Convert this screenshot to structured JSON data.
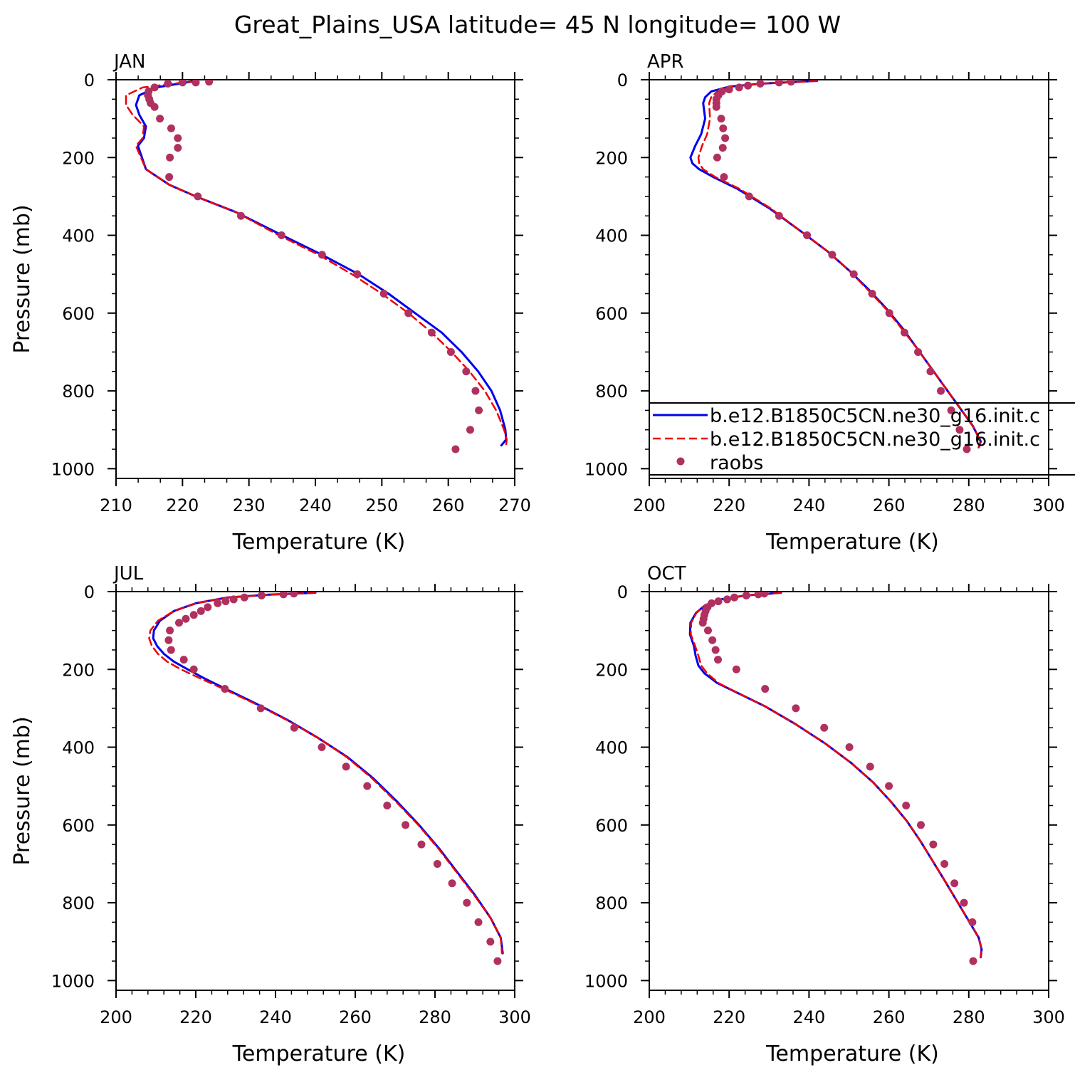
{
  "title": "Great_Plains_USA  latitude= 45 N longitude= 100 W",
  "colors": {
    "model1": "#0000ee",
    "model2": "#ee0000",
    "obs": "#b03060"
  },
  "legend": {
    "placement": "inside panel APR, lower part, clipped at right edge",
    "entries": [
      {
        "label": "b.e12.B1850C5CN.ne30_g16.init.c",
        "style": "solid",
        "color": "#0000ee"
      },
      {
        "label": "b.e12.B1850C5CN.ne30_g16.init.c",
        "style": "dashed",
        "color": "#ee0000"
      },
      {
        "label": "raobs",
        "style": "marker",
        "color": "#b03060"
      }
    ]
  },
  "chart_data": [
    {
      "type": "line",
      "title": "JAN",
      "xlabel": "Temperature (K)",
      "ylabel": "Pressure (mb)",
      "xlim": [
        210,
        270
      ],
      "ylim": [
        0,
        1025
      ],
      "y_inverted": true,
      "xticks": [
        210,
        220,
        230,
        240,
        250,
        260,
        270
      ],
      "xticks_minor": 2,
      "yticks": [
        0,
        200,
        400,
        600,
        800,
        1000
      ],
      "series": [
        {
          "style": "solid",
          "color": "#0000ee",
          "x": [
            222,
            216,
            213.5,
            213,
            213.5,
            214.5,
            214.2,
            213.3,
            214.5,
            218,
            222,
            228,
            235,
            241,
            246.5,
            251,
            255,
            259,
            262,
            264.5,
            266.5,
            267.8,
            268.6,
            268.7,
            268
          ],
          "y": [
            3,
            20,
            40,
            65,
            90,
            120,
            150,
            170,
            230,
            270,
            300,
            340,
            400,
            450,
            500,
            550,
            600,
            650,
            700,
            750,
            800,
            850,
            900,
            925,
            940
          ]
        },
        {
          "style": "dashed",
          "color": "#ee0000",
          "x": [
            222,
            214,
            211.5,
            211.5,
            212.5,
            214.2,
            214,
            213,
            214.5,
            218,
            222,
            228,
            234.5,
            240.5,
            245.5,
            250,
            254,
            257.5,
            260.5,
            263.2,
            265.5,
            267.2,
            268.4,
            268.8,
            268.7
          ],
          "y": [
            3,
            20,
            40,
            65,
            90,
            120,
            150,
            170,
            230,
            270,
            300,
            340,
            400,
            450,
            500,
            550,
            600,
            650,
            700,
            750,
            800,
            850,
            900,
            925,
            940
          ]
        }
      ],
      "observations": {
        "x": [
          224,
          222,
          220,
          217.8,
          215.8,
          214.9,
          214.8,
          215,
          215.2,
          215.8,
          216.6,
          218.3,
          219.3,
          219.3,
          218.1,
          218,
          222.3,
          228.8,
          234.9,
          241,
          246.3,
          250.3,
          254,
          257.5,
          260.4,
          262.7,
          264.1,
          264.6,
          263.3,
          261.1
        ],
        "y": [
          5,
          7,
          7,
          10,
          20,
          30,
          40,
          50,
          60,
          70,
          100,
          125,
          150,
          175,
          200,
          250,
          300,
          350,
          400,
          450,
          500,
          550,
          600,
          650,
          700,
          750,
          800,
          850,
          900,
          950
        ]
      }
    },
    {
      "type": "line",
      "title": "APR",
      "xlabel": "Temperature (K)",
      "ylabel": "",
      "xlim": [
        200,
        300
      ],
      "ylim": [
        0,
        1025
      ],
      "y_inverted": true,
      "xticks": [
        200,
        220,
        240,
        260,
        280,
        300
      ],
      "xticks_minor": 4,
      "yticks": [
        0,
        200,
        400,
        600,
        800,
        1000
      ],
      "series": [
        {
          "style": "solid",
          "color": "#0000ee",
          "x": [
            242,
            228,
            220,
            215.5,
            214,
            213.5,
            214,
            213,
            211.5,
            210.3,
            210.8,
            212.5,
            216,
            222,
            230,
            238,
            244.5,
            250,
            255,
            259.5,
            263.5,
            267,
            270.5,
            274,
            277.5,
            281,
            283,
            282.5
          ],
          "y": [
            3,
            10,
            18,
            30,
            45,
            60,
            100,
            140,
            170,
            200,
            215,
            230,
            250,
            280,
            330,
            390,
            440,
            490,
            540,
            590,
            640,
            690,
            740,
            790,
            840,
            890,
            930,
            945
          ]
        },
        {
          "style": "dashed",
          "color": "#ee0000",
          "x": [
            242,
            228,
            221,
            217,
            215.5,
            215,
            215.2,
            214.5,
            213.2,
            212.3,
            212.5,
            213.5,
            216.5,
            222.5,
            230.3,
            238,
            244.5,
            250,
            254.7,
            259.3,
            263.2,
            267,
            270.5,
            274,
            277.5,
            281,
            283,
            282.5
          ],
          "y": [
            3,
            10,
            18,
            30,
            45,
            60,
            100,
            140,
            170,
            200,
            215,
            230,
            250,
            280,
            330,
            390,
            440,
            490,
            540,
            590,
            640,
            690,
            740,
            790,
            840,
            890,
            930,
            945
          ]
        }
      ],
      "observations": {
        "x": [
          235.5,
          232.5,
          227.8,
          224.7,
          222.5,
          220,
          218.2,
          217.3,
          216.8,
          216.8,
          216.8,
          218,
          218.5,
          219,
          218.4,
          217,
          218.7,
          225,
          232.5,
          239.5,
          245.8,
          251.2,
          255.8,
          260.1,
          263.9,
          267.3,
          270.4,
          273,
          275.6,
          277.7,
          279.5
        ],
        "y": [
          5,
          7,
          10,
          15,
          20,
          25,
          30,
          40,
          50,
          60,
          70,
          100,
          125,
          150,
          175,
          200,
          250,
          300,
          350,
          400,
          450,
          500,
          550,
          600,
          650,
          700,
          750,
          800,
          850,
          900,
          950
        ]
      }
    },
    {
      "type": "line",
      "title": "JUL",
      "xlabel": "Temperature (K)",
      "ylabel": "Pressure (mb)",
      "xlim": [
        200,
        300
      ],
      "ylim": [
        0,
        1025
      ],
      "y_inverted": true,
      "xticks": [
        200,
        220,
        240,
        260,
        280,
        300
      ],
      "xticks_minor": 4,
      "yticks": [
        0,
        200,
        400,
        600,
        800,
        1000
      ],
      "series": [
        {
          "style": "solid",
          "color": "#0000ee",
          "x": [
            250,
            238,
            228,
            220,
            214.5,
            211,
            209.5,
            209.3,
            210.3,
            212,
            214.5,
            218,
            222.5,
            228.5,
            235.5,
            243,
            250.5,
            258,
            264.5,
            270.5,
            276,
            281,
            285.5,
            290,
            294,
            296.5,
            297
          ],
          "y": [
            3,
            8,
            15,
            30,
            50,
            75,
            100,
            120,
            140,
            160,
            180,
            200,
            225,
            255,
            290,
            330,
            375,
            425,
            480,
            540,
            600,
            660,
            720,
            780,
            840,
            890,
            930
          ]
        },
        {
          "style": "dashed",
          "color": "#ee0000",
          "x": [
            250,
            238,
            228,
            220,
            214.5,
            210.5,
            208.6,
            208.3,
            209,
            210.5,
            212.8,
            216.3,
            221.5,
            228,
            235.2,
            242.8,
            250.5,
            257.8,
            264.2,
            270.2,
            275.8,
            280.8,
            285.3,
            289.8,
            294,
            296.5,
            296.8
          ],
          "y": [
            3,
            8,
            15,
            30,
            50,
            75,
            100,
            120,
            140,
            160,
            180,
            200,
            225,
            255,
            290,
            330,
            375,
            425,
            480,
            540,
            600,
            660,
            720,
            780,
            840,
            890,
            930
          ]
        }
      ],
      "observations": {
        "x": [
          244.6,
          242,
          236.5,
          232.2,
          229.5,
          227.5,
          225.5,
          223,
          221.3,
          219.5,
          217.5,
          215.8,
          213.5,
          213.2,
          213.8,
          217,
          219.5,
          227.3,
          236.3,
          244.7,
          251.6,
          257.7,
          263,
          268,
          272.6,
          276.6,
          280.6,
          284.3,
          288,
          290.9,
          293.9,
          295.7
        ],
        "y": [
          5,
          7,
          10,
          15,
          20,
          25,
          30,
          40,
          50,
          60,
          70,
          80,
          100,
          125,
          150,
          175,
          200,
          250,
          300,
          350,
          400,
          450,
          500,
          550,
          600,
          650,
          700,
          750,
          800,
          850,
          900,
          950
        ]
      }
    },
    {
      "type": "line",
      "title": "OCT",
      "xlabel": "Temperature (K)",
      "ylabel": "",
      "xlim": [
        200,
        300
      ],
      "ylim": [
        0,
        1025
      ],
      "y_inverted": true,
      "xticks": [
        200,
        220,
        240,
        260,
        280,
        300
      ],
      "xticks_minor": 4,
      "yticks": [
        0,
        200,
        400,
        600,
        800,
        1000
      ],
      "series": [
        {
          "style": "solid",
          "color": "#0000ee",
          "x": [
            233,
            224,
            218,
            214,
            211.7,
            210.3,
            210.2,
            211.2,
            211.6,
            212.3,
            213.8,
            217,
            222,
            229,
            236.5,
            244,
            250.5,
            256,
            260.5,
            264.5,
            267.8,
            270.8,
            273.8,
            276.7,
            279.6,
            282.5,
            283.2,
            283
          ],
          "y": [
            3,
            10,
            20,
            35,
            55,
            80,
            110,
            140,
            165,
            190,
            210,
            235,
            260,
            295,
            340,
            390,
            440,
            490,
            540,
            590,
            640,
            690,
            740,
            790,
            840,
            890,
            920,
            940
          ]
        },
        {
          "style": "dashed",
          "color": "#ee0000",
          "x": [
            233,
            224,
            218,
            214,
            211.8,
            210.5,
            210.4,
            211.5,
            212.3,
            213,
            214.5,
            217.3,
            222,
            229,
            236.5,
            244,
            250.5,
            256,
            260.5,
            264.5,
            267.8,
            270.8,
            273.8,
            276.7,
            279.6,
            282.5,
            283.2,
            283
          ],
          "y": [
            3,
            10,
            20,
            35,
            55,
            80,
            110,
            140,
            165,
            190,
            210,
            235,
            260,
            295,
            340,
            390,
            440,
            490,
            540,
            590,
            640,
            690,
            740,
            790,
            840,
            890,
            920,
            940
          ]
        }
      ],
      "observations": {
        "x": [
          228.8,
          227.3,
          224.3,
          221.3,
          219.5,
          217.3,
          215.6,
          214.6,
          214.1,
          213.8,
          213.6,
          213.4,
          214.7,
          215.8,
          216.6,
          217.2,
          221.8,
          229,
          236.7,
          243.8,
          250.1,
          255.3,
          260,
          264.3,
          268,
          271.1,
          273.9,
          276.4,
          278.8,
          280.9,
          281.1
        ],
        "y": [
          5,
          7,
          10,
          15,
          20,
          25,
          30,
          40,
          50,
          60,
          70,
          80,
          100,
          125,
          150,
          175,
          200,
          250,
          300,
          350,
          400,
          450,
          500,
          550,
          600,
          650,
          700,
          750,
          800,
          850,
          950
        ]
      }
    }
  ]
}
